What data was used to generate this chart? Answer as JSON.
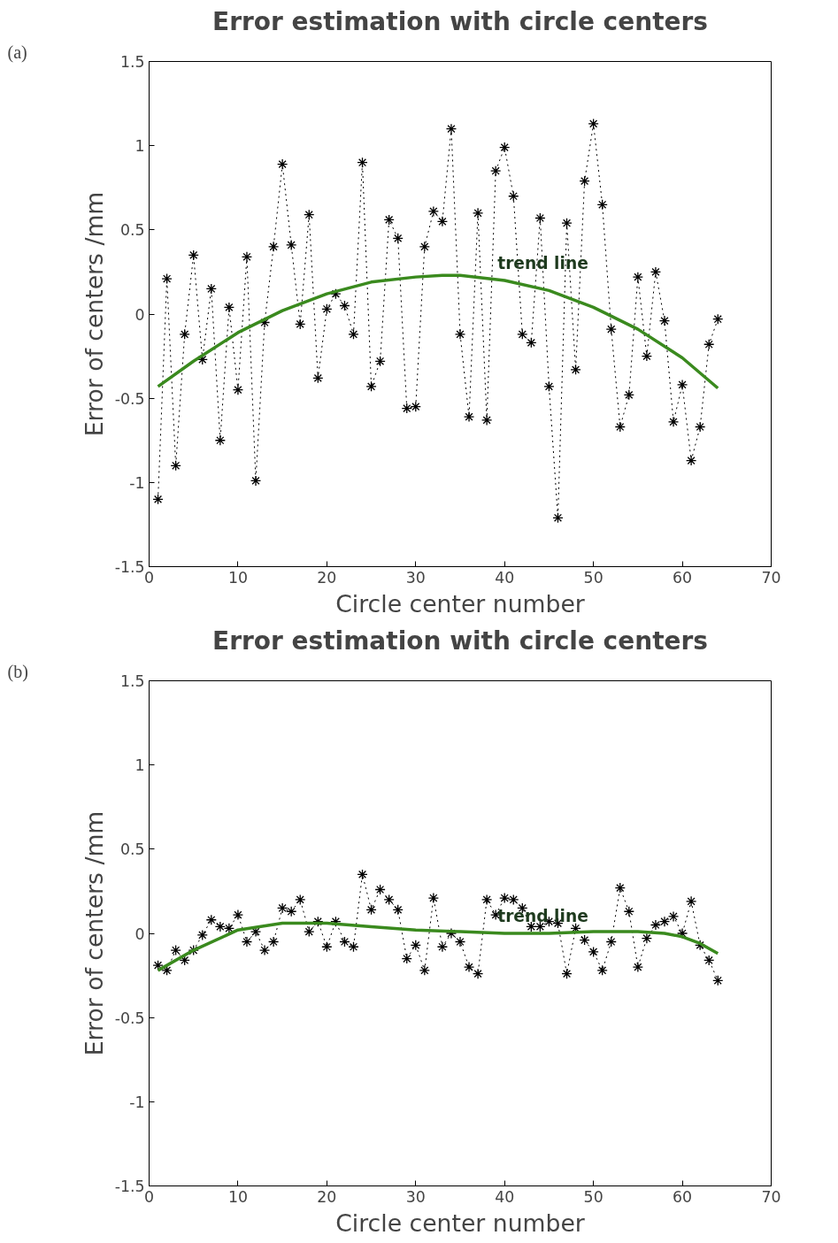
{
  "chart_data": [
    {
      "type": "line",
      "title": "Error estimation with circle centers",
      "xlabel": "Circle center number",
      "ylabel": "Error of centers /mm",
      "xlim": [
        0,
        70
      ],
      "ylim": [
        -1.5,
        1.5
      ],
      "xticks": [
        0,
        10,
        20,
        30,
        40,
        50,
        60,
        70
      ],
      "yticks": [
        -1.5,
        -1,
        -0.5,
        0,
        0.5,
        1,
        1.5
      ],
      "grid": false,
      "annotations": [
        "(a)",
        {
          "text": "trend line",
          "x": 40,
          "y": 0.2
        }
      ],
      "series": [
        {
          "color": "#000000",
          "marker": "cross",
          "line_style": "dotted",
          "x": [
            1,
            2,
            3,
            4,
            5,
            6,
            7,
            8,
            9,
            10,
            11,
            12,
            13,
            14,
            15,
            16,
            17,
            18,
            19,
            20,
            21,
            22,
            23,
            24,
            25,
            26,
            27,
            28,
            29,
            30,
            31,
            32,
            33,
            34,
            35,
            36,
            37,
            38,
            39,
            40,
            41,
            42,
            43,
            44,
            45,
            46,
            47,
            48,
            49,
            50,
            51,
            52,
            53,
            54,
            55,
            56,
            57,
            58,
            59,
            60,
            61,
            62,
            63,
            64
          ],
          "values": [
            -1.1,
            0.21,
            -0.9,
            -0.12,
            0.35,
            -0.27,
            0.15,
            -0.75,
            0.04,
            -0.45,
            0.34,
            -0.99,
            -0.05,
            0.4,
            0.89,
            0.41,
            -0.06,
            0.59,
            -0.38,
            0.03,
            0.12,
            0.05,
            -0.12,
            0.9,
            -0.43,
            -0.28,
            0.56,
            0.45,
            -0.56,
            -0.55,
            0.4,
            0.61,
            0.55,
            1.1,
            -0.12,
            -0.61,
            0.6,
            -0.63,
            0.85,
            0.99,
            0.7,
            -0.12,
            -0.17,
            0.57,
            -0.43,
            -1.21,
            0.54,
            -0.33,
            0.79,
            1.13,
            0.65,
            -0.09,
            -0.67,
            -0.48,
            0.22,
            -0.25,
            0.25,
            -0.04,
            -0.64,
            -0.42,
            -0.87,
            -0.67,
            -0.18,
            -0.03
          ]
        },
        {
          "color": "#3a8a1e",
          "marker": "none",
          "line_style": "solid",
          "x": [
            1,
            5,
            10,
            15,
            20,
            25,
            30,
            33,
            35,
            40,
            45,
            50,
            55,
            60,
            64
          ],
          "values": [
            -0.43,
            -0.28,
            -0.11,
            0.02,
            0.12,
            0.19,
            0.22,
            0.23,
            0.23,
            0.2,
            0.14,
            0.04,
            -0.09,
            -0.26,
            -0.44
          ]
        }
      ]
    },
    {
      "type": "line",
      "title": "Error estimation with circle centers",
      "xlabel": "Circle center number",
      "ylabel": "Error of centers /mm",
      "xlim": [
        0,
        70
      ],
      "ylim": [
        -1.5,
        1.5
      ],
      "xticks": [
        0,
        10,
        20,
        30,
        40,
        50,
        60,
        70
      ],
      "yticks": [
        -1.5,
        -1,
        -0.5,
        0,
        0.5,
        1,
        1.5
      ],
      "grid": false,
      "annotations": [
        "(b)",
        {
          "text": "trend line",
          "x": 40,
          "y": 0.0
        }
      ],
      "series": [
        {
          "color": "#000000",
          "marker": "cross",
          "line_style": "dotted",
          "x": [
            1,
            2,
            3,
            4,
            5,
            6,
            7,
            8,
            9,
            10,
            11,
            12,
            13,
            14,
            15,
            16,
            17,
            18,
            19,
            20,
            21,
            22,
            23,
            24,
            25,
            26,
            27,
            28,
            29,
            30,
            31,
            32,
            33,
            34,
            35,
            36,
            37,
            38,
            39,
            40,
            41,
            42,
            43,
            44,
            45,
            46,
            47,
            48,
            49,
            50,
            51,
            52,
            53,
            54,
            55,
            56,
            57,
            58,
            59,
            60,
            61,
            62,
            63,
            64
          ],
          "values": [
            -0.19,
            -0.22,
            -0.1,
            -0.16,
            -0.1,
            -0.01,
            0.08,
            0.04,
            0.03,
            0.11,
            -0.05,
            0.01,
            -0.1,
            -0.05,
            0.15,
            0.13,
            0.2,
            0.01,
            0.07,
            -0.08,
            0.07,
            -0.05,
            -0.08,
            0.35,
            0.14,
            0.26,
            0.2,
            0.14,
            -0.15,
            -0.07,
            -0.22,
            0.21,
            -0.08,
            0.0,
            -0.05,
            -0.2,
            -0.24,
            0.2,
            0.11,
            0.21,
            0.2,
            0.15,
            0.04,
            0.04,
            0.07,
            0.06,
            -0.24,
            0.03,
            -0.04,
            -0.11,
            -0.22,
            -0.05,
            0.27,
            0.13,
            -0.2,
            -0.03,
            0.05,
            0.07,
            0.1,
            0.0,
            0.19,
            -0.07,
            -0.16,
            -0.28
          ]
        },
        {
          "color": "#3a8a1e",
          "marker": "none",
          "line_style": "solid",
          "x": [
            1,
            5,
            10,
            15,
            20,
            25,
            30,
            35,
            40,
            45,
            50,
            55,
            58,
            60,
            62,
            64
          ],
          "values": [
            -0.22,
            -0.1,
            0.02,
            0.06,
            0.06,
            0.04,
            0.02,
            0.01,
            0.0,
            0.0,
            0.01,
            0.01,
            0.0,
            -0.02,
            -0.06,
            -0.12
          ]
        }
      ]
    }
  ]
}
